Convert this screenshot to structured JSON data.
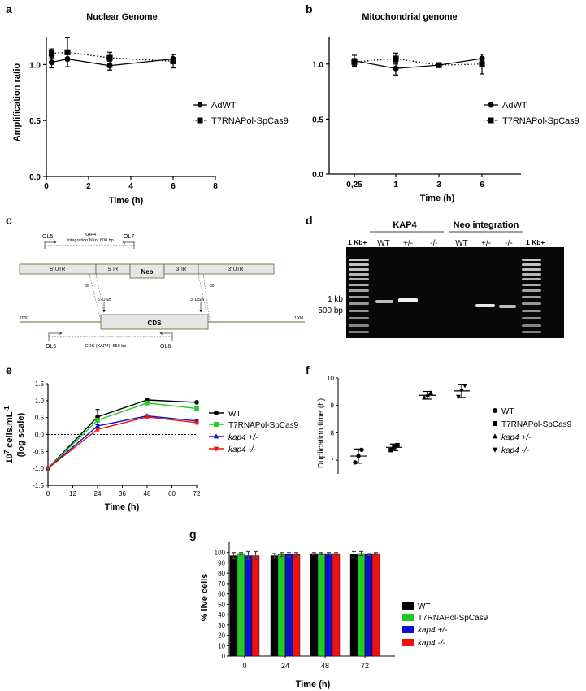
{
  "panels": {
    "a": {
      "letter": "a",
      "title": "Nuclear Genome",
      "ylabel": "Amplification ratio",
      "xlabel": "Time (h)",
      "legend": [
        "AdWT",
        "T7RNAPol-SpCas9"
      ]
    },
    "b": {
      "letter": "b",
      "title": "Mitochondrial  genome",
      "xlabel": "Time (h)",
      "legend": [
        "AdWT",
        "T7RNAPol-SpCas9"
      ]
    },
    "c": {
      "letter": "c",
      "primers": {
        "OL5_top": "OL5",
        "OL7": "OL7",
        "OL5_bottom": "OL5",
        "OL6": "OL6"
      },
      "kap4_label": "KAP4",
      "integration_label": "Integration Neo: 600 bp",
      "segments": {
        "utr5": "5' UTR",
        "ir5": "5' IR",
        "neo": "Neo",
        "ir3": "3' IR",
        "utr3": "3' UTR"
      },
      "dsb5": "5' DSB",
      "dsb3": "3' DSB",
      "cds": "CDS",
      "cds_size": "CDS (KAP4): 650 bp",
      "scale_left": "1000",
      "scale_right": "1000",
      "tick30": "30"
    },
    "d": {
      "letter": "d",
      "group1": "KAP4",
      "group2": "Neo integration",
      "ladder_left": "1 Kb+",
      "ladder_right": "1 Kb+",
      "lanes": [
        "WT",
        "+/-",
        "-/-",
        "WT",
        "+/-",
        "-/-"
      ],
      "size_1kb": "1 kb",
      "size_500": "500 bp"
    },
    "e": {
      "letter": "e",
      "ylabel1": "10",
      "ylabel_sup": "7",
      "ylabel2": " cells.mL",
      "ylabel_sup2": "-1",
      "ylabel3": "(log scale)",
      "xlabel": "Time (h)"
    },
    "f": {
      "letter": "f",
      "ylabel": "Duplication time (h)"
    },
    "g": {
      "letter": "g",
      "ylabel": "% live cells",
      "xlabel": "Time (h)"
    }
  },
  "legend_efg": [
    "WT",
    "T7RNAPol-SpCas9",
    "kap4 +/-",
    "kap4 -/-"
  ],
  "colors": {
    "WT": "#000000",
    "T7": "#22cc22",
    "het": "#1010cc",
    "ko": "#ee1111"
  },
  "chart_data": [
    {
      "panel": "a",
      "type": "line",
      "title": "Nuclear Genome",
      "xlabel": "Time (h)",
      "ylabel": "Amplification ratio",
      "xlim": [
        0,
        8
      ],
      "ylim": [
        0,
        1.25
      ],
      "xticks": [
        "0",
        "2",
        "4",
        "6",
        "8"
      ],
      "yticks": [
        "0.0",
        "0.5",
        "1.0"
      ],
      "series": [
        {
          "name": "AdWT",
          "x": [
            0.25,
            1,
            3,
            6
          ],
          "y": [
            1.02,
            1.05,
            0.99,
            1.05
          ],
          "err": [
            0.05,
            0.07,
            0.04,
            0.04
          ]
        },
        {
          "name": "T7RNAPol-SpCas9",
          "x": [
            0.25,
            1,
            3,
            6
          ],
          "y": [
            1.1,
            1.11,
            1.06,
            1.03
          ],
          "err": [
            0.04,
            0.13,
            0.05,
            0.06
          ]
        }
      ]
    },
    {
      "panel": "b",
      "type": "line",
      "title": "Mitochondrial  genome",
      "xlabel": "Time (h)",
      "xlim": [
        0,
        4
      ],
      "ylim": [
        0,
        1.25
      ],
      "x_categories": [
        "0,25",
        "1",
        "3",
        "6"
      ],
      "yticks": [
        "0.0",
        "0.5",
        "1.0"
      ],
      "series": [
        {
          "name": "AdWT",
          "y": [
            1.03,
            0.96,
            0.99,
            1.05
          ],
          "err": [
            0.05,
            0.06,
            0.02,
            0.04
          ]
        },
        {
          "name": "T7RNAPol-SpCas9",
          "y": [
            1.02,
            1.05,
            0.99,
            1.0
          ],
          "err": [
            0.03,
            0.05,
            0.02,
            0.09
          ]
        }
      ]
    },
    {
      "panel": "e",
      "type": "line",
      "xlabel": "Time (h)",
      "xlim": [
        0,
        72
      ],
      "ylim": [
        -1.5,
        1.5
      ],
      "xticks": [
        "0",
        "12",
        "24",
        "36",
        "48",
        "60",
        "72"
      ],
      "yticks": [
        "-1.5",
        "-1.0",
        "-0.5",
        "0.0",
        "0.5",
        "1.0",
        "1.5"
      ],
      "x": [
        0,
        24,
        48,
        72
      ],
      "series": [
        {
          "name": "WT",
          "y": [
            -1.0,
            0.52,
            1.02,
            0.95
          ],
          "err": [
            0,
            0.22,
            0.05,
            0.02
          ]
        },
        {
          "name": "T7RNAPol-SpCas9",
          "y": [
            -1.0,
            0.42,
            0.93,
            0.77
          ],
          "err": [
            0,
            0.05,
            0.03,
            0.03
          ]
        },
        {
          "name": "kap4 +/-",
          "y": [
            -1.0,
            0.25,
            0.55,
            0.4
          ],
          "err": [
            0,
            0.04,
            0.03,
            0.04
          ]
        },
        {
          "name": "kap4 -/-",
          "y": [
            -1.0,
            0.15,
            0.52,
            0.35
          ],
          "err": [
            0,
            0.04,
            0.03,
            0.04
          ]
        }
      ]
    },
    {
      "panel": "f",
      "type": "scatter",
      "ylabel": "Duplication time (h)",
      "ylim": [
        6.5,
        10
      ],
      "yticks": [
        "7",
        "8",
        "9",
        "10"
      ],
      "series": [
        {
          "name": "WT",
          "mean": 7.15,
          "sd": 0.26,
          "points": [
            6.92,
            7.38,
            7.15
          ]
        },
        {
          "name": "T7RNAPol-SpCas9",
          "mean": 7.47,
          "sd": 0.12,
          "points": [
            7.37,
            7.55,
            7.48
          ]
        },
        {
          "name": "kap4 +/-",
          "mean": 9.37,
          "sd": 0.14,
          "points": [
            9.28,
            9.45,
            9.38
          ]
        },
        {
          "name": "kap4 -/-",
          "mean": 9.53,
          "sd": 0.24,
          "points": [
            9.32,
            9.73,
            9.55
          ]
        }
      ]
    },
    {
      "panel": "g",
      "type": "bar",
      "xlabel": "Time (h)",
      "ylabel": "% live cells",
      "ylim": [
        0,
        110
      ],
      "yticks": [
        "0",
        "10",
        "20",
        "30",
        "40",
        "50",
        "60",
        "70",
        "80",
        "90",
        "100"
      ],
      "categories": [
        "0",
        "24",
        "48",
        "72"
      ],
      "series": [
        {
          "name": "WT",
          "values": [
            97,
            97,
            99,
            98
          ],
          "err": [
            3,
            2,
            1,
            3
          ]
        },
        {
          "name": "T7RNAPol-SpCas9",
          "values": [
            99,
            98,
            99,
            99
          ],
          "err": [
            1,
            2,
            1,
            2
          ]
        },
        {
          "name": "kap4 +/-",
          "values": [
            97,
            98,
            99,
            98
          ],
          "err": [
            4,
            2,
            1,
            1
          ]
        },
        {
          "name": "kap4 -/-",
          "values": [
            97,
            98,
            99,
            99
          ],
          "err": [
            4,
            2,
            1,
            1
          ]
        }
      ]
    }
  ]
}
